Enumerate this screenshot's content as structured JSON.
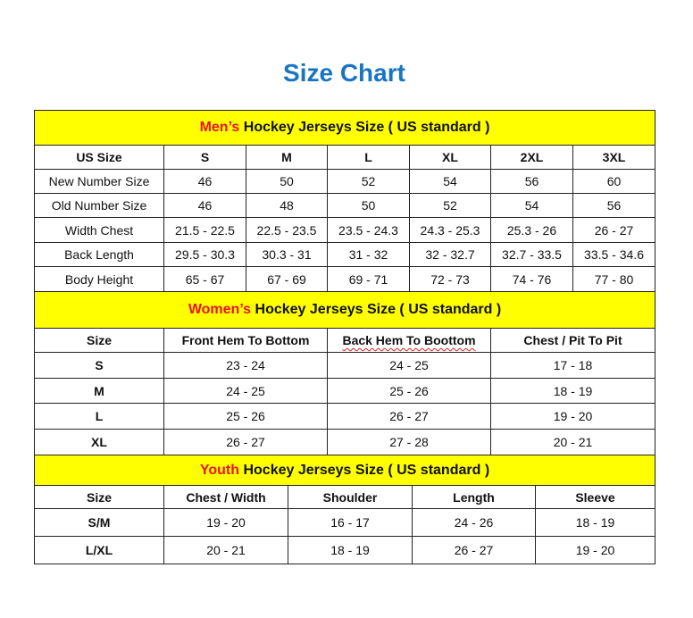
{
  "title": "Size Chart",
  "men": {
    "prefix": "Men’s",
    "suffix": " Hockey Jerseys Size ( US standard )",
    "headers": [
      "US Size",
      "S",
      "M",
      "L",
      "XL",
      "2XL",
      "3XL"
    ],
    "rows": [
      [
        "New Number Size",
        "46",
        "50",
        "52",
        "54",
        "56",
        "60"
      ],
      [
        "Old Number Size",
        "46",
        "48",
        "50",
        "52",
        "54",
        "56"
      ],
      [
        "Width Chest",
        "21.5 - 22.5",
        "22.5 - 23.5",
        "23.5 - 24.3",
        "24.3 - 25.3",
        "25.3 - 26",
        "26 - 27"
      ],
      [
        "Back Length",
        "29.5 - 30.3",
        "30.3 - 31",
        "31 - 32",
        "32 - 32.7",
        "32.7 - 33.5",
        "33.5 - 34.6"
      ],
      [
        "Body Height",
        "65 - 67",
        "67 - 69",
        "69 - 71",
        "72 - 73",
        "74 - 76",
        "77 - 80"
      ]
    ]
  },
  "women": {
    "prefix": "Women’s",
    "suffix": " Hockey Jerseys Size ( US standard )",
    "headers": [
      "Size",
      "Front Hem To Bottom",
      "Back Hem To Boottom",
      "Chest / Pit To Pit"
    ],
    "rows": [
      [
        "S",
        "23 - 24",
        "24 - 25",
        "17 - 18"
      ],
      [
        "M",
        "24 - 25",
        "25 - 26",
        "18 - 19"
      ],
      [
        "L",
        "25 - 26",
        "26 - 27",
        "19 - 20"
      ],
      [
        "XL",
        "26 - 27",
        "27 - 28",
        "20 - 21"
      ]
    ]
  },
  "youth": {
    "prefix": "Youth",
    "suffix": " Hockey Jerseys Size ( US standard )",
    "headers": [
      "Size",
      "Chest / Width",
      "Shoulder",
      "Length",
      "Sleeve"
    ],
    "rows": [
      [
        "S/M",
        "19 - 20",
        "16 - 17",
        "24 - 26",
        "18 - 19"
      ],
      [
        "L/XL",
        "20 - 21",
        "18 - 19",
        "26 - 27",
        "19 - 20"
      ]
    ]
  },
  "colors": {
    "title": "#1a75c1",
    "band": "#ffff00",
    "accent": "#e8131b"
  }
}
